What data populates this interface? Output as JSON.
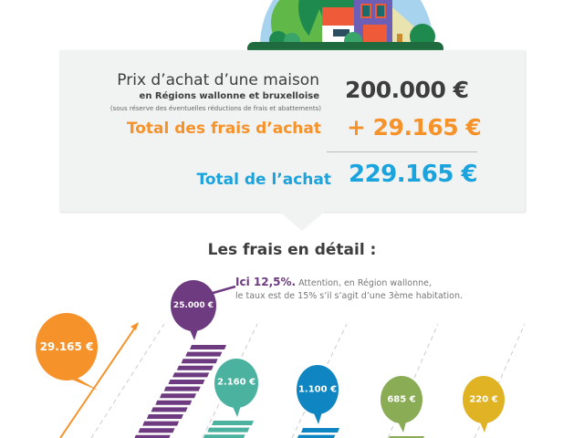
{
  "summary": {
    "price_label": "Prix d’achat d’une maison",
    "region_label": "en Régions wallonne et bruxelloise",
    "disclaimer": "(sous réserve des éventuelles réductions de frais et abattements)",
    "price_value": "200.000 €",
    "fees_label": "Total des frais d’achat",
    "fees_value": "+ 29.165 €",
    "total_label": "Total de l’achat",
    "total_value": "229.165 €"
  },
  "detail": {
    "title": "Les frais en détail :",
    "note_bold": "Ici 12,5%.",
    "note_rest": " Attention, en Région wallonne,",
    "note_line2": "le taux est de 15% s’il s’agit d’une 3ème habitation."
  },
  "bubbles": {
    "total": "29.165 €",
    "b1": "25.000 €",
    "b2": "2.160 €",
    "b3": "1.100 €",
    "b4": "685 €",
    "b5": "220 €"
  },
  "colors": {
    "orange": "#f5922a",
    "purple": "#6e3a80",
    "teal": "#4bb29f",
    "blue": "#0f86c2",
    "green": "#8aac55",
    "yellow": "#e0b324",
    "total_blue": "#1aa3dc",
    "panel": "#f1f2f2"
  },
  "chart_data": {
    "type": "bar",
    "values": [
      25000,
      2160,
      1100,
      685,
      220
    ],
    "value_labels": [
      "25.000 €",
      "2.160 €",
      "1.100 €",
      "685 €",
      "220 €"
    ],
    "total": 29165,
    "total_label": "29.165 €",
    "unit": "€"
  }
}
